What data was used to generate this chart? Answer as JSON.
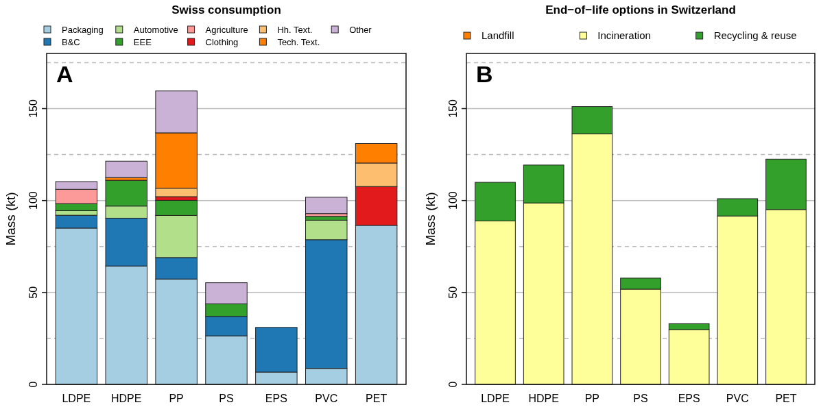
{
  "chart_data": [
    {
      "type": "bar",
      "title": "Swiss consumption",
      "ylabel": "Mass (kt)",
      "stacked": true,
      "legend": "top",
      "grid": "y",
      "annotations": [
        "A"
      ],
      "categories": [
        "LDPE",
        "HDPE",
        "PP",
        "PS",
        "EPS",
        "PVC",
        "PET"
      ],
      "ylim": [
        0,
        180
      ],
      "yticks": [
        0,
        {
          "value": 25,
          "label": null
        },
        50,
        {
          "value": 75,
          "label": null
        },
        100,
        {
          "value": 125,
          "label": null
        },
        150,
        {
          "value": 175,
          "label": null
        }
      ],
      "series": [
        {
          "name": "Packaging",
          "color": "#a6cee3",
          "values": [
            85,
            64.4,
            57.3,
            26.4,
            6.7,
            8.7,
            86.5
          ]
        },
        {
          "name": "B&C",
          "color": "#1f78b4",
          "values": [
            7,
            26,
            11.7,
            10.6,
            24.3,
            70,
            0
          ]
        },
        {
          "name": "Automotive",
          "color": "#b2df8a",
          "values": [
            2.5,
            6.6,
            22.9,
            0,
            0,
            10.6,
            0
          ]
        },
        {
          "name": "EEE",
          "color": "#33a02c",
          "values": [
            3.8,
            14,
            8.2,
            6.8,
            0,
            2.1,
            0
          ]
        },
        {
          "name": "Agriculture",
          "color": "#fb9a99",
          "values": [
            7.8,
            0,
            0,
            0,
            0,
            1.5,
            0
          ]
        },
        {
          "name": "Clothing",
          "color": "#e31a1c",
          "values": [
            0,
            0,
            2,
            0,
            0,
            0,
            21.1
          ]
        },
        {
          "name": "Hh. Text.",
          "color": "#fdbf6f",
          "values": [
            0,
            0,
            4.6,
            0,
            0,
            0,
            12.8
          ]
        },
        {
          "name": "Tech. Text.",
          "color": "#ff7f00",
          "values": [
            0,
            1.5,
            30.1,
            0,
            0,
            0,
            10.6
          ]
        },
        {
          "name": "Other",
          "color": "#cab2d6",
          "values": [
            4.2,
            8.9,
            22.8,
            11.5,
            0,
            8.9,
            0
          ]
        }
      ]
    },
    {
      "type": "bar",
      "title": "End−of−life options in Switzerland",
      "ylabel": "Mass (kt)",
      "stacked": true,
      "legend": "top",
      "grid": "y",
      "annotations": [
        "B"
      ],
      "categories": [
        "LDPE",
        "HDPE",
        "PP",
        "PS",
        "EPS",
        "PVC",
        "PET"
      ],
      "ylim": [
        0,
        180
      ],
      "yticks": [
        0,
        {
          "value": 25,
          "label": null
        },
        50,
        {
          "value": 75,
          "label": null
        },
        100,
        {
          "value": 125,
          "label": null
        },
        150,
        {
          "value": 175,
          "label": null
        }
      ],
      "series": [
        {
          "name": "Landfill",
          "color": "#ff7f00",
          "values": [
            0,
            0,
            0,
            0,
            0,
            0,
            0
          ]
        },
        {
          "name": "Incineration",
          "color": "#ffff99",
          "values": [
            88.9,
            98.7,
            136.3,
            51.8,
            29.8,
            91.6,
            95.1
          ]
        },
        {
          "name": "Recycling & reuse",
          "color": "#33a02c",
          "values": [
            21,
            20.6,
            14.8,
            6,
            3.2,
            9.4,
            27.4
          ]
        }
      ]
    }
  ]
}
